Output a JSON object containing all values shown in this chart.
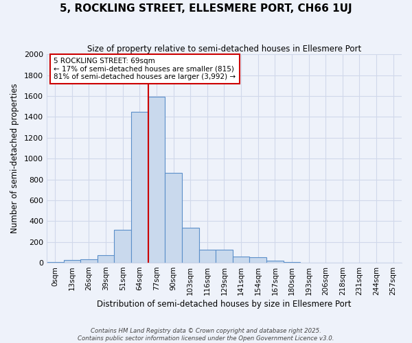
{
  "title": "5, ROCKLING STREET, ELLESMERE PORT, CH66 1UJ",
  "subtitle": "Size of property relative to semi-detached houses in Ellesmere Port",
  "xlabel": "Distribution of semi-detached houses by size in Ellesmere Port",
  "ylabel": "Number of semi-detached properties",
  "categories": [
    "0sqm",
    "13sqm",
    "26sqm",
    "39sqm",
    "51sqm",
    "64sqm",
    "77sqm",
    "90sqm",
    "103sqm",
    "116sqm",
    "129sqm",
    "141sqm",
    "154sqm",
    "167sqm",
    "180sqm",
    "193sqm",
    "206sqm",
    "218sqm",
    "231sqm",
    "244sqm",
    "257sqm"
  ],
  "values": [
    10,
    30,
    35,
    75,
    315,
    1450,
    1590,
    865,
    335,
    125,
    125,
    62,
    50,
    20,
    8,
    0,
    0,
    0,
    0,
    0,
    0
  ],
  "bar_color": "#c9d9ed",
  "bar_edge_color": "#5b8fc9",
  "red_line_x": 5.5,
  "annotation_text_line1": "5 ROCKLING STREET: 69sqm",
  "annotation_text_line2": "← 17% of semi-detached houses are smaller (815)",
  "annotation_text_line3": "81% of semi-detached houses are larger (3,992) →",
  "annotation_box_color": "#ffffff",
  "annotation_box_edge": "#cc0000",
  "red_line_color": "#cc0000",
  "ylim": [
    0,
    2000
  ],
  "yticks": [
    0,
    200,
    400,
    600,
    800,
    1000,
    1200,
    1400,
    1600,
    1800,
    2000
  ],
  "footer_line1": "Contains HM Land Registry data © Crown copyright and database right 2025.",
  "footer_line2": "Contains public sector information licensed under the Open Government Licence v3.0.",
  "background_color": "#eef2fa",
  "grid_color": "#d0d8ea"
}
